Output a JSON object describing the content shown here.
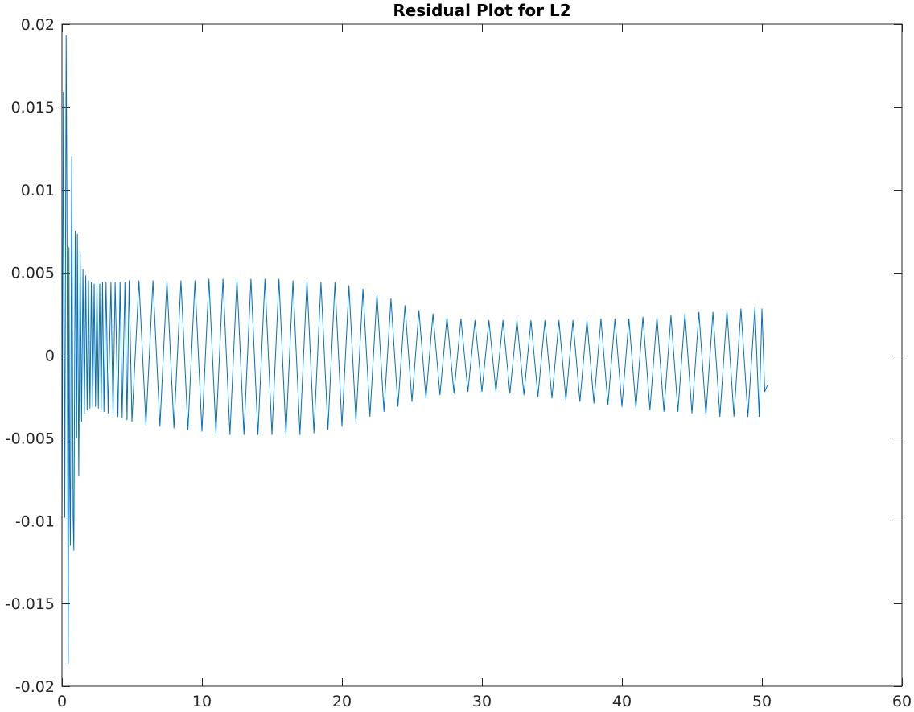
{
  "chart_data": {
    "type": "line",
    "title": "Residual Plot for L2",
    "xlabel": "",
    "ylabel": "",
    "xlim": [
      0,
      60
    ],
    "ylim": [
      -0.02,
      0.02
    ],
    "x_ticks": [
      0,
      10,
      20,
      30,
      40,
      50,
      60
    ],
    "x_tick_labels": [
      "0",
      "10",
      "20",
      "30",
      "40",
      "50",
      "60"
    ],
    "y_ticks": [
      -0.02,
      -0.015,
      -0.01,
      -0.005,
      0,
      0.005,
      0.01,
      0.015,
      0.02
    ],
    "y_tick_labels": [
      "-0.02",
      "-0.015",
      "-0.01",
      "-0.005",
      "0",
      "0.005",
      "0.01",
      "0.015",
      "0.02"
    ],
    "grid": false,
    "legend": "none",
    "series": [
      {
        "color": "#0072BD",
        "x": [
          0,
          0.1,
          0.2,
          0.3,
          0.35,
          0.45,
          0.5,
          0.55,
          0.6,
          0.7,
          0.8,
          0.85,
          0.95,
          1.05,
          1.1,
          1.2,
          1.3,
          1.4,
          1.5,
          1.6,
          1.7,
          1.8,
          1.9,
          2.0,
          2.1,
          2.2,
          2.3,
          2.4,
          2.5,
          2.6,
          2.7,
          2.8,
          2.9,
          3.0,
          3.15,
          3.3,
          3.5,
          3.65,
          3.8,
          4.0,
          4.15,
          4.3,
          4.5,
          4.65,
          4.8,
          5.0,
          5.5,
          6.0,
          6.5,
          7.0,
          7.5,
          8.0,
          8.5,
          9.0,
          9.5,
          10.0,
          10.5,
          11.0,
          11.5,
          12.0,
          12.5,
          13.0,
          13.5,
          14.0,
          14.5,
          15.0,
          15.5,
          16.0,
          16.5,
          17.0,
          17.5,
          18.0,
          18.5,
          19.0,
          19.5,
          20.0,
          20.5,
          21.0,
          21.5,
          22.0,
          22.5,
          23.0,
          23.5,
          24.0,
          24.5,
          25.0,
          25.5,
          26.0,
          26.5,
          27.0,
          27.5,
          28.0,
          28.5,
          29.0,
          29.5,
          30.0,
          30.5,
          31.0,
          31.5,
          32.0,
          32.5,
          33.0,
          33.5,
          34.0,
          34.5,
          35.0,
          35.5,
          36.0,
          36.5,
          37.0,
          37.5,
          38.0,
          38.5,
          39.0,
          39.5,
          40.0,
          40.5,
          41.0,
          41.5,
          42.0,
          42.5,
          43.0,
          43.5,
          44.0,
          44.5,
          45.0,
          45.5,
          46.0,
          46.5,
          47.0,
          47.5,
          48.0,
          48.5,
          49.0,
          49.5,
          49.8,
          50.0,
          50.2,
          50.4
        ],
        "y": [
          -0.0115,
          0.0159,
          -0.0098,
          0.0193,
          0.0101,
          -0.0186,
          0.0065,
          -0.0072,
          -0.0115,
          0.012,
          -0.0098,
          -0.0118,
          0.0075,
          -0.005,
          0.0073,
          -0.0073,
          0.0062,
          -0.004,
          0.0052,
          -0.0035,
          0.0048,
          -0.0033,
          0.0045,
          -0.0032,
          0.0044,
          -0.0031,
          0.0043,
          -0.0031,
          0.0043,
          -0.0032,
          0.0043,
          -0.0033,
          0.0044,
          -0.0034,
          0.0044,
          -0.0035,
          0.0044,
          -0.0036,
          0.0044,
          -0.0037,
          0.0044,
          -0.0038,
          0.0044,
          -0.0039,
          0.0045,
          -0.004,
          0.0045,
          -0.0042,
          0.0045,
          -0.0043,
          0.0045,
          -0.0044,
          0.0045,
          -0.0045,
          0.0045,
          -0.0046,
          0.0046,
          -0.0047,
          0.0046,
          -0.0048,
          0.0046,
          -0.0048,
          0.0046,
          -0.0048,
          0.0046,
          -0.0048,
          0.0046,
          -0.0048,
          0.0045,
          -0.0048,
          0.0045,
          -0.0047,
          0.0044,
          -0.0045,
          0.0044,
          -0.0043,
          0.0042,
          -0.004,
          0.004,
          -0.0037,
          0.0037,
          -0.0034,
          0.0034,
          -0.0031,
          0.003,
          -0.0028,
          0.0027,
          -0.0026,
          0.0025,
          -0.0024,
          0.0023,
          -0.0023,
          0.0022,
          -0.0022,
          0.0021,
          -0.0022,
          0.0021,
          -0.0022,
          0.0021,
          -0.0023,
          0.0021,
          -0.0024,
          0.0021,
          -0.0025,
          0.0021,
          -0.0026,
          0.0021,
          -0.0027,
          0.0021,
          -0.0028,
          0.0021,
          -0.0029,
          0.0022,
          -0.003,
          0.0022,
          -0.0031,
          0.0022,
          -0.0032,
          0.0023,
          -0.0033,
          0.0023,
          -0.0034,
          0.0024,
          -0.0034,
          0.0025,
          -0.0035,
          0.0026,
          -0.0036,
          0.0026,
          -0.0037,
          0.0027,
          -0.0037,
          0.0028,
          -0.0037,
          0.0029,
          -0.0037,
          0.0028,
          -0.0022,
          -0.0018
        ]
      }
    ]
  }
}
